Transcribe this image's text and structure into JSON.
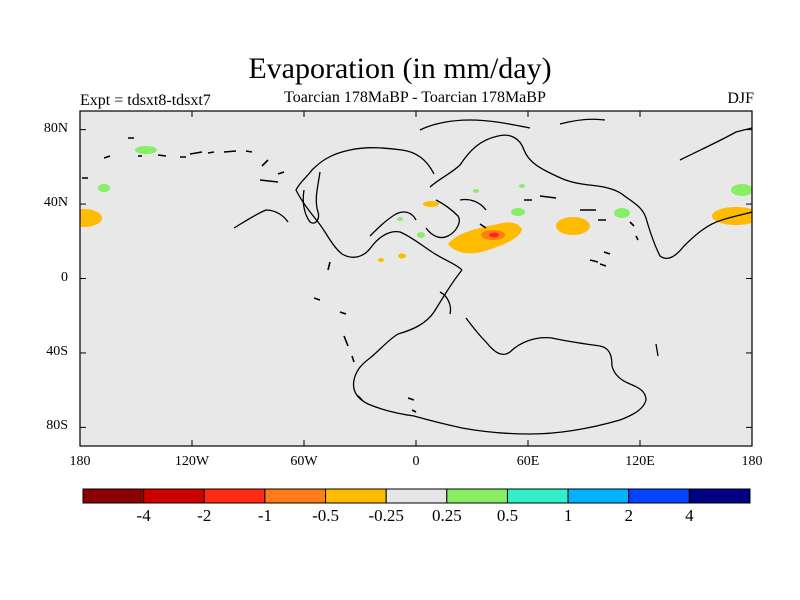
{
  "title": "Evaporation (in mm/day)",
  "expt_label": "Expt = tdsxt8-tdsxt7",
  "subtitle": "Toarcian 178MaBP - Toarcian 178MaBP",
  "season": "DJF",
  "lat_ticks": [
    {
      "value": 80,
      "label": "80N"
    },
    {
      "value": 40,
      "label": "40N"
    },
    {
      "value": 0,
      "label": "0"
    },
    {
      "value": -40,
      "label": "40S"
    },
    {
      "value": -80,
      "label": "80S"
    }
  ],
  "lon_ticks": [
    {
      "value": -180,
      "label": "180"
    },
    {
      "value": -120,
      "label": "120W"
    },
    {
      "value": -60,
      "label": "60W"
    },
    {
      "value": 0,
      "label": "0"
    },
    {
      "value": 60,
      "label": "60E"
    },
    {
      "value": 120,
      "label": "120E"
    },
    {
      "value": 180,
      "label": "180"
    }
  ],
  "colorbar": {
    "colors": [
      "#8b0000",
      "#cc0000",
      "#ff2a10",
      "#ff7a18",
      "#ffbb00",
      "#e6e6e6",
      "#88ee66",
      "#33eecc",
      "#00b2ff",
      "#0044ff",
      "#000080"
    ],
    "labels": [
      "-4",
      "-2",
      "-1",
      "-0.5",
      "-0.25",
      "0.25",
      "0.5",
      "1",
      "2",
      "4"
    ]
  },
  "background_color": "#e8e8e8"
}
